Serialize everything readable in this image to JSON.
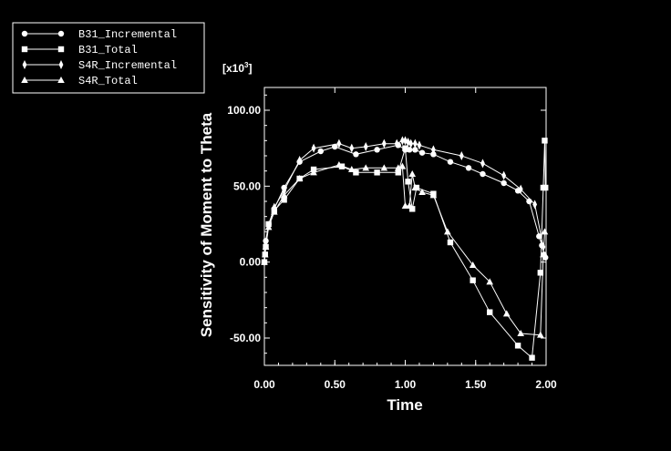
{
  "chart_data": {
    "type": "line",
    "title": "",
    "xlabel": "Time",
    "ylabel": "Sensitivity of Moment to Theta",
    "y_multiplier": "[x10^3]",
    "xlim": [
      0.0,
      2.0
    ],
    "ylim": [
      -68,
      115
    ],
    "x_ticks": [
      "0.00",
      "0.50",
      "1.00",
      "1.50",
      "2.00"
    ],
    "y_ticks": [
      "-50.00",
      "0.00",
      "50.00",
      "100.00"
    ],
    "grid": false,
    "legend_position": "top-left",
    "series": [
      {
        "name": "B31_Incremental",
        "marker": "circle",
        "x": [
          0.0,
          0.01,
          0.03,
          0.07,
          0.14,
          0.25,
          0.4,
          0.5,
          0.65,
          0.8,
          0.95,
          1.0,
          1.03,
          1.07,
          1.12,
          1.2,
          1.32,
          1.45,
          1.55,
          1.7,
          1.8,
          1.88,
          1.95,
          1.97,
          1.985,
          1.995
        ],
        "y": [
          0,
          14,
          25,
          35,
          49,
          66,
          73,
          76,
          71,
          74,
          77,
          74,
          74,
          74,
          72,
          71,
          66,
          62,
          58,
          52,
          47,
          40,
          17,
          11,
          5,
          3
        ]
      },
      {
        "name": "B31_Total",
        "marker": "square",
        "x": [
          0.0,
          0.005,
          0.01,
          0.03,
          0.07,
          0.14,
          0.25,
          0.35,
          0.55,
          0.65,
          0.8,
          0.95,
          1.0,
          1.02,
          1.05,
          1.08,
          1.2,
          1.32,
          1.48,
          1.6,
          1.8,
          1.9,
          1.96,
          1.98,
          1.99,
          1.995
        ],
        "y": [
          0,
          5,
          10,
          25,
          34,
          41,
          55,
          61,
          63,
          59,
          59,
          59,
          75,
          53,
          35,
          49,
          45,
          13,
          -12,
          -33,
          -55,
          -63,
          -7,
          49,
          80,
          49
        ]
      },
      {
        "name": "S4R_Incremental",
        "marker": "diamond",
        "x": [
          0.0,
          0.01,
          0.03,
          0.07,
          0.14,
          0.25,
          0.35,
          0.53,
          0.62,
          0.72,
          0.85,
          0.94,
          0.98,
          1.0,
          1.02,
          1.04,
          1.07,
          1.1,
          1.2,
          1.4,
          1.55,
          1.7,
          1.82,
          1.92,
          1.98
        ],
        "y": [
          0,
          13,
          24,
          36,
          47,
          67,
          75,
          78,
          75,
          76,
          78,
          78,
          80,
          80,
          79,
          78,
          78,
          77,
          74,
          70,
          65,
          57,
          48,
          38,
          10
        ]
      },
      {
        "name": "S4R_Total",
        "marker": "triangle",
        "x": [
          0.0,
          0.005,
          0.01,
          0.03,
          0.07,
          0.14,
          0.25,
          0.35,
          0.53,
          0.62,
          0.72,
          0.85,
          0.95,
          0.98,
          1.0,
          1.03,
          1.05,
          1.07,
          1.12,
          1.2,
          1.3,
          1.48,
          1.6,
          1.72,
          1.82,
          1.96,
          1.98,
          1.99
        ],
        "y": [
          0,
          5,
          10,
          23,
          33,
          44,
          55,
          59,
          64,
          61,
          62,
          62,
          62,
          63,
          37,
          37,
          58,
          49,
          46,
          44,
          20,
          -2,
          -13,
          -34,
          -47,
          -48,
          5,
          20
        ]
      }
    ]
  }
}
